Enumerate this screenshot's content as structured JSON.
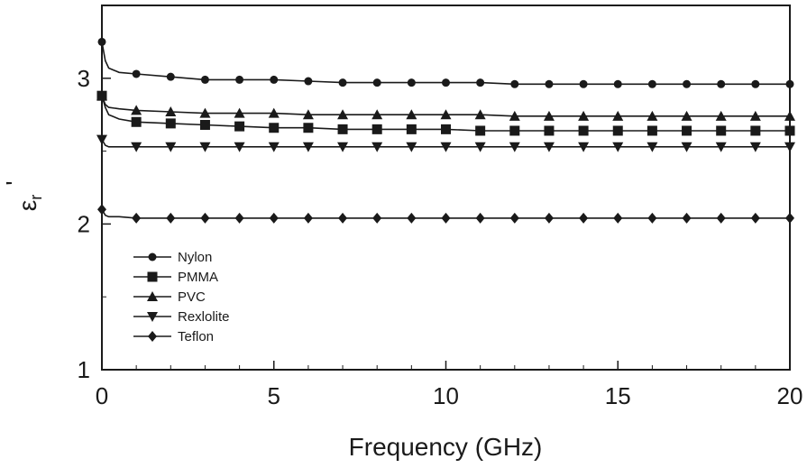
{
  "chart_data": {
    "type": "line",
    "xlabel": "Frequency (GHz)",
    "ylabel": "ε′r",
    "ylabel_main": "ε",
    "ylabel_sub": "r",
    "ylabel_prime": "'",
    "xlim": [
      0,
      20
    ],
    "ylim": [
      1,
      3.5
    ],
    "x_ticks": [
      0,
      5,
      10,
      15,
      20
    ],
    "x_tick_labels": [
      "0",
      "5",
      "10",
      "15",
      "20"
    ],
    "y_ticks": [
      1,
      2,
      3
    ],
    "y_tick_labels": [
      "1",
      "2",
      "3"
    ],
    "grid": false,
    "legend_position": "lower-left",
    "series": [
      {
        "name": "Nylon",
        "marker": "circle",
        "x": [
          0,
          0.1,
          0.2,
          0.5,
          1,
          2,
          3,
          4,
          5,
          6,
          7,
          8,
          9,
          10,
          11,
          12,
          13,
          14,
          15,
          16,
          17,
          18,
          19,
          20
        ],
        "values": [
          3.25,
          3.12,
          3.07,
          3.04,
          3.03,
          3.01,
          2.99,
          2.99,
          2.99,
          2.98,
          2.97,
          2.97,
          2.97,
          2.97,
          2.97,
          2.96,
          2.96,
          2.96,
          2.96,
          2.96,
          2.96,
          2.96,
          2.96,
          2.96
        ]
      },
      {
        "name": "PMMA",
        "marker": "square",
        "x": [
          0,
          0.1,
          0.2,
          0.5,
          1,
          2,
          3,
          4,
          5,
          6,
          7,
          8,
          9,
          10,
          11,
          12,
          13,
          14,
          15,
          16,
          17,
          18,
          19,
          20
        ],
        "values": [
          2.88,
          2.8,
          2.75,
          2.72,
          2.7,
          2.69,
          2.68,
          2.67,
          2.66,
          2.66,
          2.65,
          2.65,
          2.65,
          2.65,
          2.64,
          2.64,
          2.64,
          2.64,
          2.64,
          2.64,
          2.64,
          2.64,
          2.64,
          2.64
        ]
      },
      {
        "name": "PVC",
        "marker": "triangle-up",
        "x": [
          0,
          0.1,
          0.2,
          0.5,
          1,
          2,
          3,
          4,
          5,
          6,
          7,
          8,
          9,
          10,
          11,
          12,
          13,
          14,
          15,
          16,
          17,
          18,
          19,
          20
        ],
        "values": [
          2.88,
          2.82,
          2.8,
          2.79,
          2.78,
          2.77,
          2.76,
          2.76,
          2.76,
          2.75,
          2.75,
          2.75,
          2.75,
          2.75,
          2.75,
          2.74,
          2.74,
          2.74,
          2.74,
          2.74,
          2.74,
          2.74,
          2.74,
          2.74
        ]
      },
      {
        "name": "Rexlolite",
        "marker": "triangle-down",
        "x": [
          0,
          0.1,
          0.2,
          0.5,
          1,
          2,
          3,
          4,
          5,
          6,
          7,
          8,
          9,
          10,
          11,
          12,
          13,
          14,
          15,
          16,
          17,
          18,
          19,
          20
        ],
        "values": [
          2.58,
          2.54,
          2.53,
          2.53,
          2.53,
          2.53,
          2.53,
          2.53,
          2.53,
          2.53,
          2.53,
          2.53,
          2.53,
          2.53,
          2.53,
          2.53,
          2.53,
          2.53,
          2.53,
          2.53,
          2.53,
          2.53,
          2.53,
          2.53
        ]
      },
      {
        "name": "Teflon",
        "marker": "diamond",
        "x": [
          0,
          0.1,
          0.2,
          0.5,
          1,
          2,
          3,
          4,
          5,
          6,
          7,
          8,
          9,
          10,
          11,
          12,
          13,
          14,
          15,
          16,
          17,
          18,
          19,
          20
        ],
        "values": [
          2.1,
          2.06,
          2.05,
          2.05,
          2.04,
          2.04,
          2.04,
          2.04,
          2.04,
          2.04,
          2.04,
          2.04,
          2.04,
          2.04,
          2.04,
          2.04,
          2.04,
          2.04,
          2.04,
          2.04,
          2.04,
          2.04,
          2.04,
          2.04
        ]
      }
    ],
    "marker_x_values": [
      0,
      1,
      2,
      3,
      4,
      5,
      6,
      7,
      8,
      9,
      10,
      11,
      12,
      13,
      14,
      15,
      16,
      17,
      18,
      19,
      20
    ]
  }
}
